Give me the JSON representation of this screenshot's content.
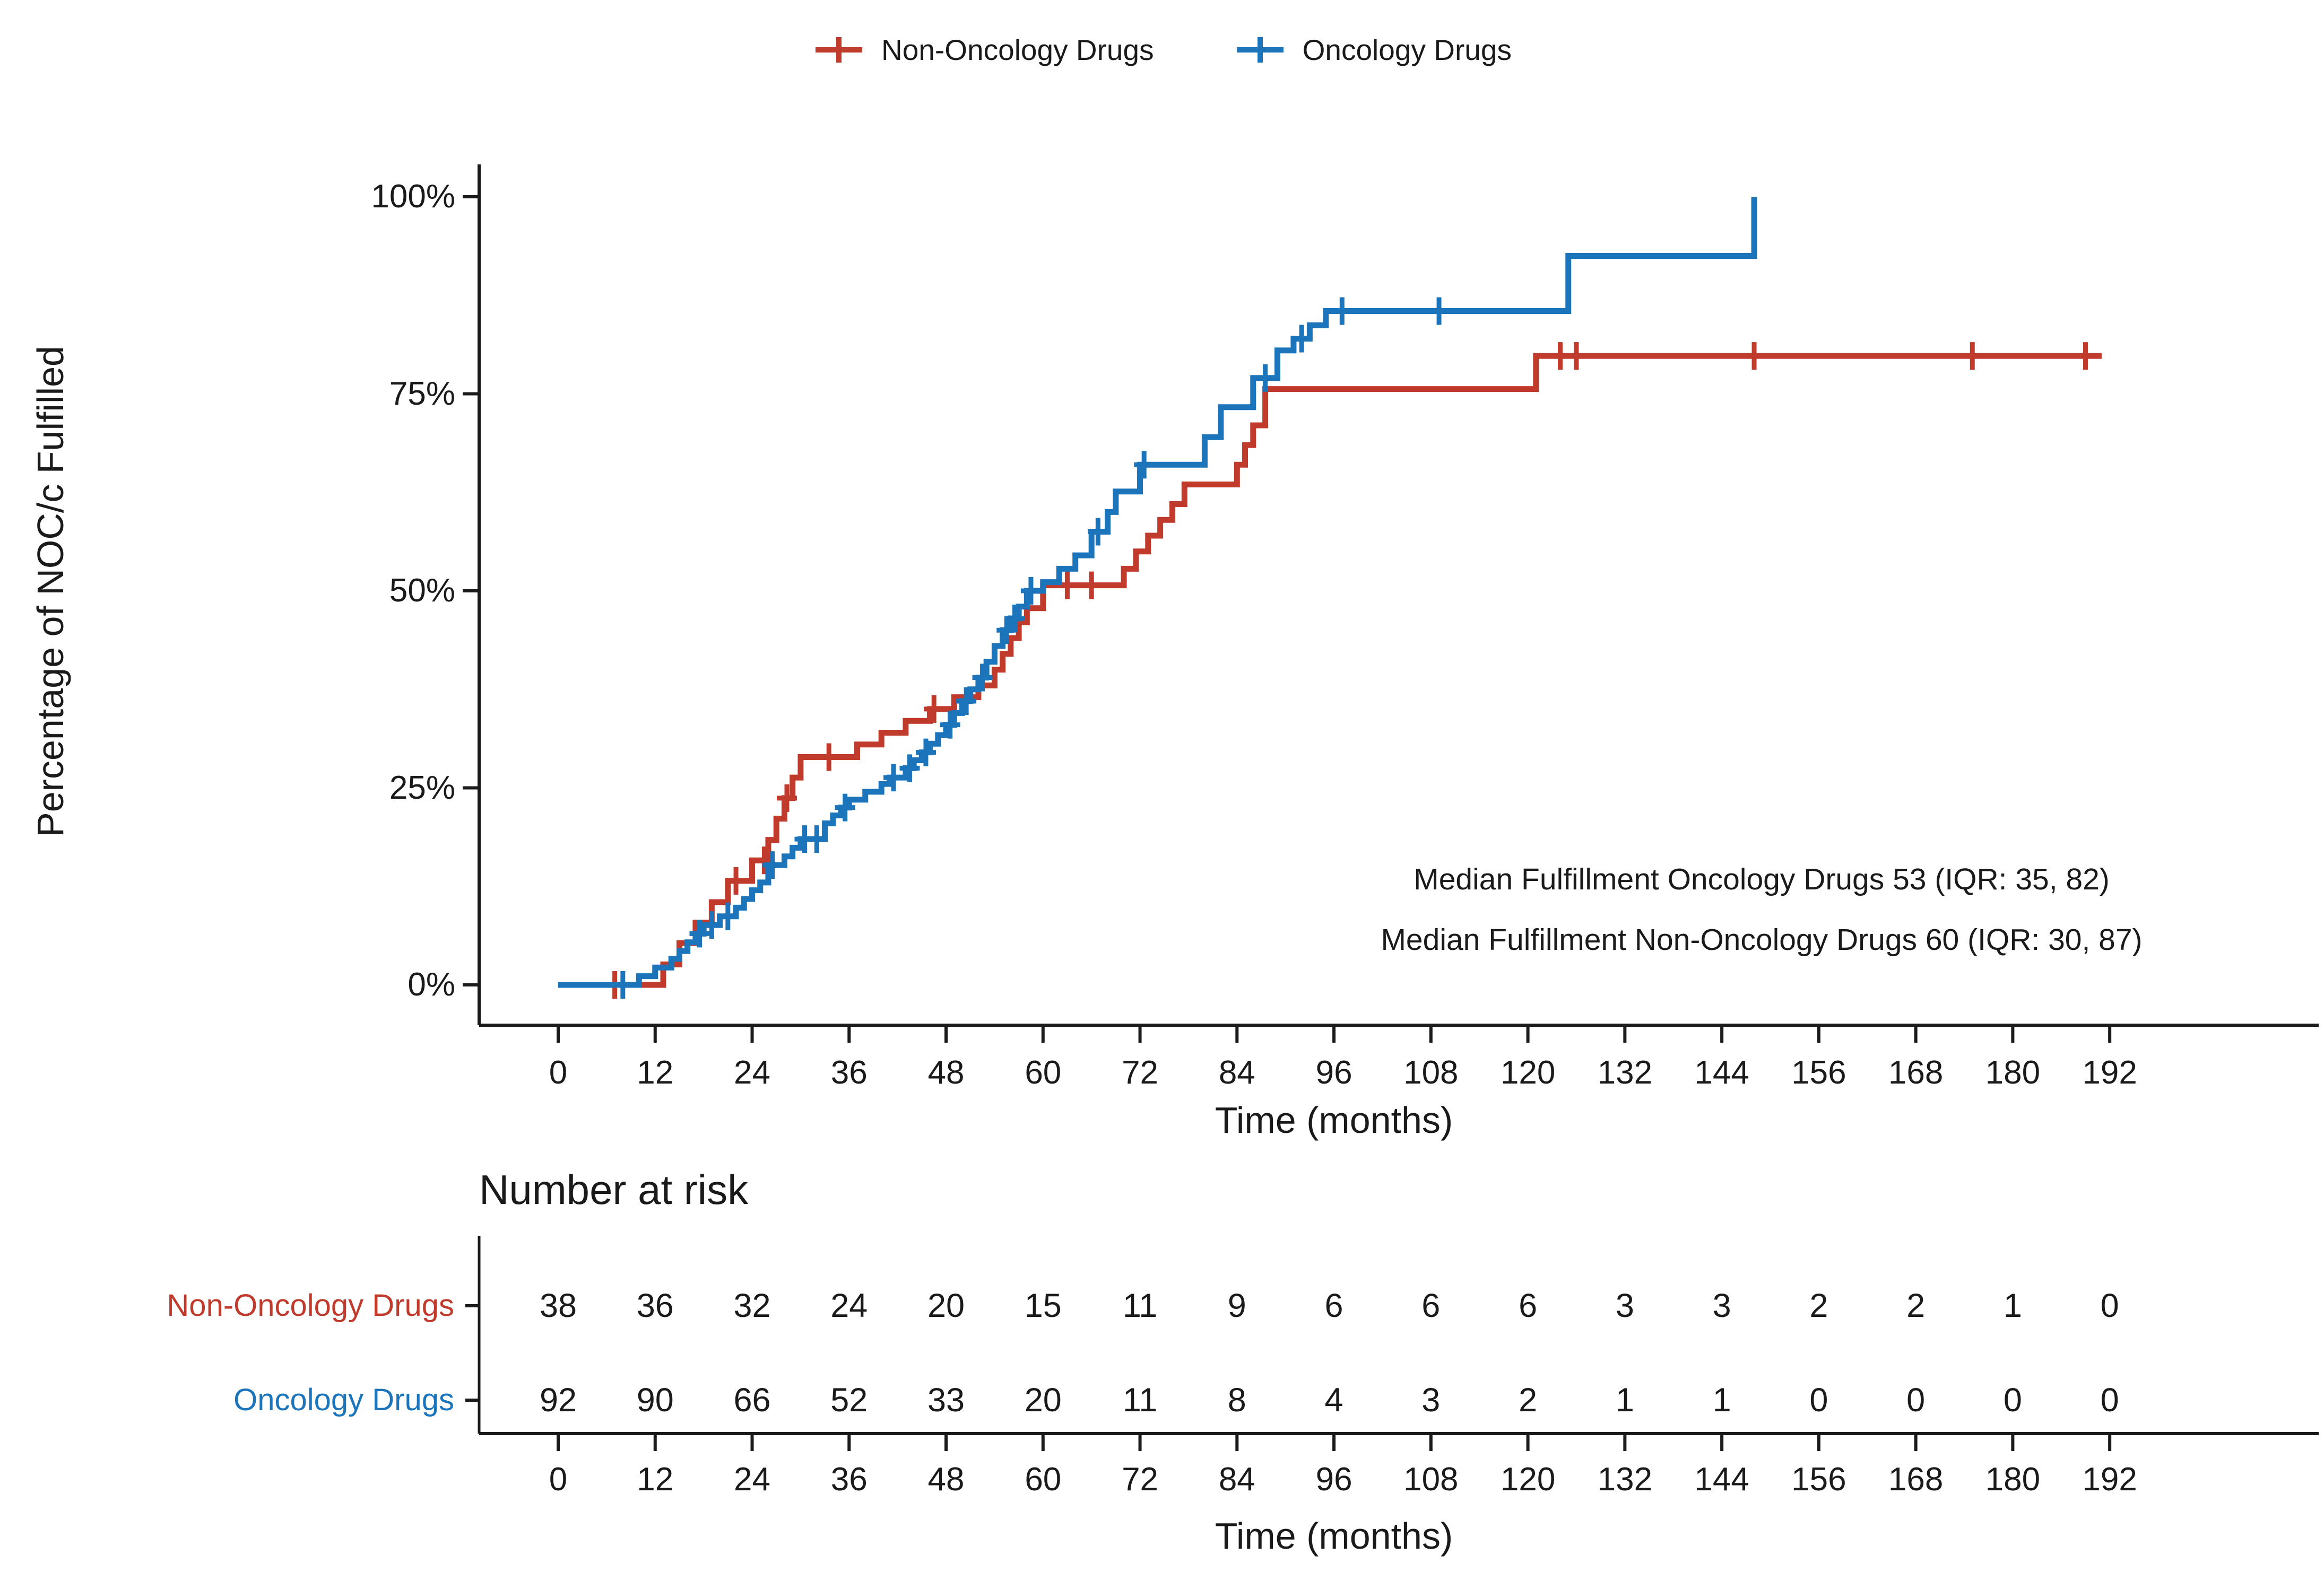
{
  "legend": {
    "items": [
      {
        "label": "Non-Oncology Drugs",
        "color": "#C13B2C"
      },
      {
        "label": "Oncology Drugs",
        "color": "#1C75BA"
      }
    ]
  },
  "y_axis": {
    "label": "Percentage of NOC/c Fulfilled",
    "tick_labels": [
      "0%",
      "25%",
      "50%",
      "75%",
      "100%"
    ]
  },
  "x_axis": {
    "label": "Time (months)",
    "tick_labels": [
      0,
      12,
      24,
      36,
      48,
      60,
      72,
      84,
      96,
      108,
      120,
      132,
      144,
      156,
      168,
      180,
      192
    ]
  },
  "annotations": {
    "line1": "Median Fulfillment Oncology Drugs 53 (IQR: 35, 82)",
    "line2": "Median Fulfillment Non-Oncology Drugs 60 (IQR: 30, 87)"
  },
  "risk_table": {
    "title": "Number at risk",
    "x_axis_label": "Time (months)",
    "time_points": [
      0,
      12,
      24,
      36,
      48,
      60,
      72,
      84,
      96,
      108,
      120,
      132,
      144,
      156,
      168,
      180,
      192
    ],
    "rows": [
      {
        "label": "Non-Oncology Drugs",
        "color": "#C13B2C",
        "values": [
          38,
          36,
          32,
          24,
          20,
          15,
          11,
          9,
          6,
          6,
          6,
          3,
          3,
          2,
          2,
          1,
          0
        ]
      },
      {
        "label": "Oncology Drugs",
        "color": "#1C75BA",
        "values": [
          92,
          90,
          66,
          52,
          33,
          20,
          11,
          8,
          4,
          3,
          2,
          1,
          1,
          0,
          0,
          0,
          0
        ]
      }
    ]
  },
  "chart_data": {
    "type": "line",
    "subtype": "kaplan-meier-cumulative-step",
    "title": "",
    "xlabel": "Time (months)",
    "ylabel": "Percentage of NOC/c Fulfilled",
    "xlim": [
      0,
      192
    ],
    "ylim": [
      0,
      100
    ],
    "x_ticks": [
      0,
      12,
      24,
      36,
      48,
      60,
      72,
      84,
      96,
      108,
      120,
      132,
      144,
      156,
      168,
      180,
      192
    ],
    "y_ticks": [
      0,
      25,
      50,
      75,
      100
    ],
    "grid": false,
    "legend_position": "top",
    "series": [
      {
        "name": "Non-Oncology Drugs",
        "color": "#C13B2C",
        "steps": [
          [
            0,
            0
          ],
          [
            13,
            2.6
          ],
          [
            15,
            5.3
          ],
          [
            17,
            7.9
          ],
          [
            19,
            10.5
          ],
          [
            21,
            13.2
          ],
          [
            24,
            15.8
          ],
          [
            26,
            18.4
          ],
          [
            27,
            21.1
          ],
          [
            28,
            23.7
          ],
          [
            29,
            26.3
          ],
          [
            30,
            28.9
          ],
          [
            37,
            30.5
          ],
          [
            40,
            32
          ],
          [
            43,
            33.5
          ],
          [
            46,
            35
          ],
          [
            49,
            36.5
          ],
          [
            52,
            38
          ],
          [
            54,
            40
          ],
          [
            55,
            42
          ],
          [
            56,
            44
          ],
          [
            57,
            46
          ],
          [
            58,
            47.8
          ],
          [
            60,
            50.7
          ],
          [
            70,
            52.8
          ],
          [
            71.5,
            55
          ],
          [
            73,
            57
          ],
          [
            74.5,
            59
          ],
          [
            76,
            61
          ],
          [
            77.5,
            63.5
          ],
          [
            84,
            66
          ],
          [
            85,
            68.5
          ],
          [
            86,
            71
          ],
          [
            87.5,
            75.6
          ],
          [
            121,
            79.8
          ],
          [
            191,
            79.8
          ]
        ],
        "censors": [
          [
            7,
            0
          ],
          [
            22,
            13.2
          ],
          [
            25.5,
            15.8
          ],
          [
            28.3,
            23.7
          ],
          [
            33.5,
            28.9
          ],
          [
            46.5,
            35
          ],
          [
            63,
            50.7
          ],
          [
            66,
            50.7
          ],
          [
            124,
            79.8
          ],
          [
            126,
            79.8
          ],
          [
            148,
            79.8
          ],
          [
            175,
            79.8
          ],
          [
            189,
            79.8
          ]
        ]
      },
      {
        "name": "Oncology Drugs",
        "color": "#1C75BA",
        "steps": [
          [
            0,
            0
          ],
          [
            10,
            1.1
          ],
          [
            12,
            2.2
          ],
          [
            14,
            3.3
          ],
          [
            15,
            4.3
          ],
          [
            16,
            5.4
          ],
          [
            17,
            6.5
          ],
          [
            18,
            7.6
          ],
          [
            20,
            8.7
          ],
          [
            22,
            9.8
          ],
          [
            23,
            10.9
          ],
          [
            24,
            12
          ],
          [
            25,
            13
          ],
          [
            26,
            15.2
          ],
          [
            28,
            16.3
          ],
          [
            29,
            17.4
          ],
          [
            30,
            18.5
          ],
          [
            33,
            20.5
          ],
          [
            34,
            21.5
          ],
          [
            35,
            22.5
          ],
          [
            36,
            23.5
          ],
          [
            38,
            24.5
          ],
          [
            40,
            25.5
          ],
          [
            41,
            26.3
          ],
          [
            43,
            27.5
          ],
          [
            44,
            28.5
          ],
          [
            45,
            29.5
          ],
          [
            46,
            30.6
          ],
          [
            47,
            31.7
          ],
          [
            48,
            33
          ],
          [
            49,
            34.5
          ],
          [
            50,
            36
          ],
          [
            51,
            37.5
          ],
          [
            52,
            39
          ],
          [
            53,
            41
          ],
          [
            54,
            43
          ],
          [
            55,
            45
          ],
          [
            56,
            46.5
          ],
          [
            57,
            48
          ],
          [
            58,
            50
          ],
          [
            60,
            51.1
          ],
          [
            62,
            52.8
          ],
          [
            64,
            54.5
          ],
          [
            66,
            57.5
          ],
          [
            68,
            60
          ],
          [
            69,
            62.6
          ],
          [
            72,
            66
          ],
          [
            80,
            69.5
          ],
          [
            82,
            73.3
          ],
          [
            86,
            77
          ],
          [
            89,
            80.5
          ],
          [
            91,
            82
          ],
          [
            93,
            83.7
          ],
          [
            95,
            85.5
          ],
          [
            125,
            92.5
          ],
          [
            148,
            100
          ]
        ],
        "censors": [
          [
            8,
            0
          ],
          [
            17.5,
            6.5
          ],
          [
            19,
            7.6
          ],
          [
            21,
            8.7
          ],
          [
            26.5,
            15.2
          ],
          [
            30.5,
            18.5
          ],
          [
            32,
            18.5
          ],
          [
            35.5,
            22.5
          ],
          [
            41.5,
            26.3
          ],
          [
            43.5,
            27.5
          ],
          [
            45.5,
            29.5
          ],
          [
            48.5,
            33
          ],
          [
            50.5,
            36
          ],
          [
            52.5,
            39
          ],
          [
            55.5,
            45
          ],
          [
            56.5,
            46.5
          ],
          [
            58.5,
            50
          ],
          [
            66.8,
            57.5
          ],
          [
            72.5,
            66
          ],
          [
            87.5,
            77
          ],
          [
            92,
            82
          ],
          [
            97,
            85.5
          ],
          [
            109,
            85.5
          ]
        ]
      }
    ],
    "risk_table": {
      "title": "Number at risk",
      "categories": [
        0,
        12,
        24,
        36,
        48,
        60,
        72,
        84,
        96,
        108,
        120,
        132,
        144,
        156,
        168,
        180,
        192
      ],
      "series": [
        {
          "name": "Non-Oncology Drugs",
          "values": [
            38,
            36,
            32,
            24,
            20,
            15,
            11,
            9,
            6,
            6,
            6,
            3,
            3,
            2,
            2,
            1,
            0
          ]
        },
        {
          "name": "Oncology Drugs",
          "values": [
            92,
            90,
            66,
            52,
            33,
            20,
            11,
            8,
            4,
            3,
            2,
            1,
            1,
            0,
            0,
            0,
            0
          ]
        }
      ]
    }
  }
}
